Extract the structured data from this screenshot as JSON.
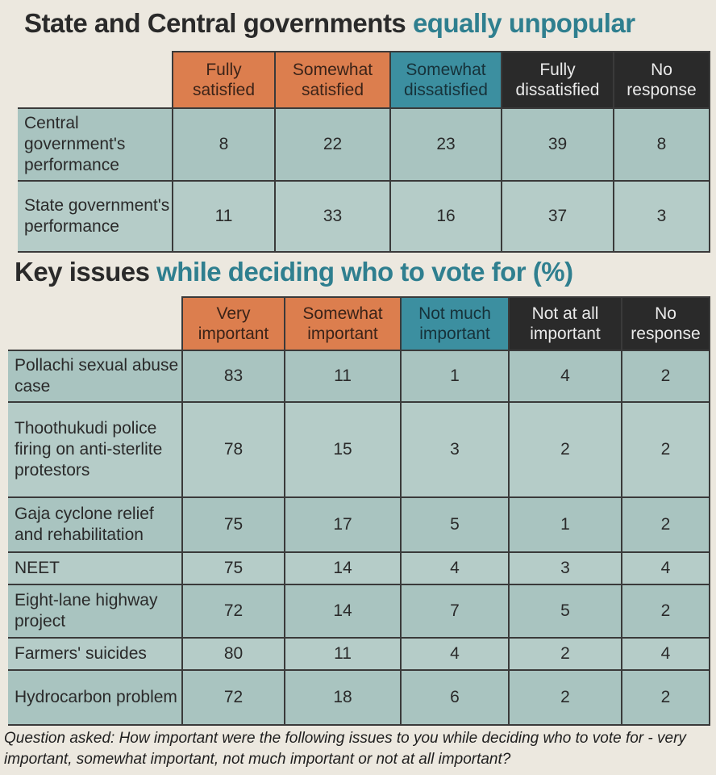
{
  "section1": {
    "title_part1": "State and Central governments",
    "title_part2": "equally unpopular",
    "columns": [
      "Fully satisfied",
      "Somewhat satisfied",
      "Somewhat dissatisfied",
      "Fully dissatisfied",
      "No response"
    ],
    "column_colors": [
      "#dc7e4e",
      "#dc7e4e",
      "#3c8fa0",
      "#2a2a2a",
      "#2a2a2a"
    ],
    "rows": [
      {
        "label": "Central government's performance",
        "values": [
          "8",
          "22",
          "23",
          "39",
          "8"
        ]
      },
      {
        "label": "State government's performance",
        "values": [
          "11",
          "33",
          "16",
          "37",
          "3"
        ]
      }
    ]
  },
  "section2": {
    "title_part1": "Key issues",
    "title_part2": "while deciding who to vote for (%)",
    "columns": [
      "Very important",
      "Somewhat important",
      "Not much important",
      "Not at all important",
      "No response"
    ],
    "column_colors": [
      "#dc7e4e",
      "#dc7e4e",
      "#3c8fa0",
      "#2a2a2a",
      "#2a2a2a"
    ],
    "rows": [
      {
        "label": "Pollachi sexual abuse case",
        "values": [
          "83",
          "11",
          "1",
          "4",
          "2"
        ]
      },
      {
        "label": "Thoothukudi police firing on anti-sterlite protestors",
        "values": [
          "78",
          "15",
          "3",
          "2",
          "2"
        ]
      },
      {
        "label": "Gaja cyclone relief and rehabilitation",
        "values": [
          "75",
          "17",
          "5",
          "1",
          "2"
        ]
      },
      {
        "label": "NEET",
        "values": [
          "75",
          "14",
          "4",
          "3",
          "4"
        ]
      },
      {
        "label": "Eight-lane highway project",
        "values": [
          "72",
          "14",
          "7",
          "5",
          "2"
        ]
      },
      {
        "label": "Farmers' suicides",
        "values": [
          "80",
          "11",
          "4",
          "2",
          "4"
        ]
      },
      {
        "label": "Hydrocarbon problem",
        "values": [
          "72",
          "18",
          "6",
          "2",
          "2"
        ]
      }
    ]
  },
  "footnote": "Question asked: How important were the following issues to you while deciding who to vote for - very important, somewhat important, not much important or not at all important?"
}
